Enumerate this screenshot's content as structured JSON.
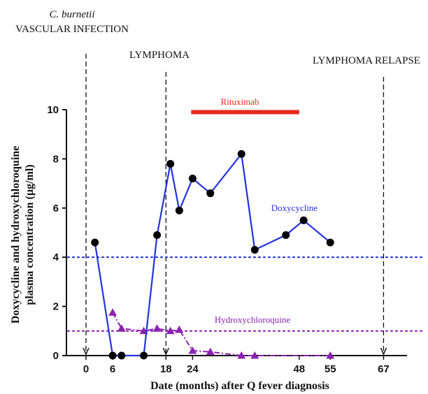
{
  "chart_data": {
    "type": "line",
    "annotations": {
      "organism": "C. burnetii",
      "infection": "VASCULAR INFECTION",
      "lymphoma": "LYMPHOMA",
      "relapse": "LYMPHOMA RELAPSE",
      "treatment": "Rituximab"
    },
    "xlabel": "Date (months) after Q fever diagnosis",
    "ylabel_line1": "Doxycycline and hydroxychloroquine",
    "ylabel_line2": "plasma concentration (µg/ml)",
    "xlim": [
      -8,
      82
    ],
    "ylim": [
      0,
      10
    ],
    "x_ticks": [
      0,
      6,
      18,
      24,
      48,
      55,
      67
    ],
    "y_ticks": [
      0,
      2,
      4,
      6,
      8,
      10
    ],
    "events": [
      {
        "key": "infection",
        "x": 0
      },
      {
        "key": "lymphoma",
        "x": 18
      },
      {
        "key": "relapse",
        "x": 67
      }
    ],
    "rituximab_period": [
      24,
      48
    ],
    "rituximab_level": 9.9,
    "thresholds": [
      {
        "series": "Doxycycline",
        "y": 4,
        "color": "#2233dd"
      },
      {
        "series": "Hydroxychloroquine",
        "y": 1,
        "color": "#8a22b0"
      }
    ],
    "series": [
      {
        "name": "Doxycycline",
        "color": "#2233dd",
        "marker": "circle",
        "x": [
          2,
          6,
          8,
          13,
          16,
          19,
          21,
          24,
          28,
          35,
          38,
          45,
          49,
          55
        ],
        "y": [
          4.6,
          0,
          0,
          0,
          4.9,
          7.8,
          5.9,
          7.2,
          6.6,
          8.2,
          4.3,
          4.9,
          5.5,
          4.6
        ]
      },
      {
        "name": "Hydroxychloroquine",
        "color": "#8a22b0",
        "marker": "triangle",
        "x": [
          6,
          8,
          13,
          16,
          19,
          21,
          24,
          28,
          35,
          38,
          55
        ],
        "y": [
          1.75,
          1.1,
          1.0,
          1.1,
          1.0,
          1.05,
          0.2,
          0.15,
          0,
          0,
          0
        ]
      }
    ]
  }
}
